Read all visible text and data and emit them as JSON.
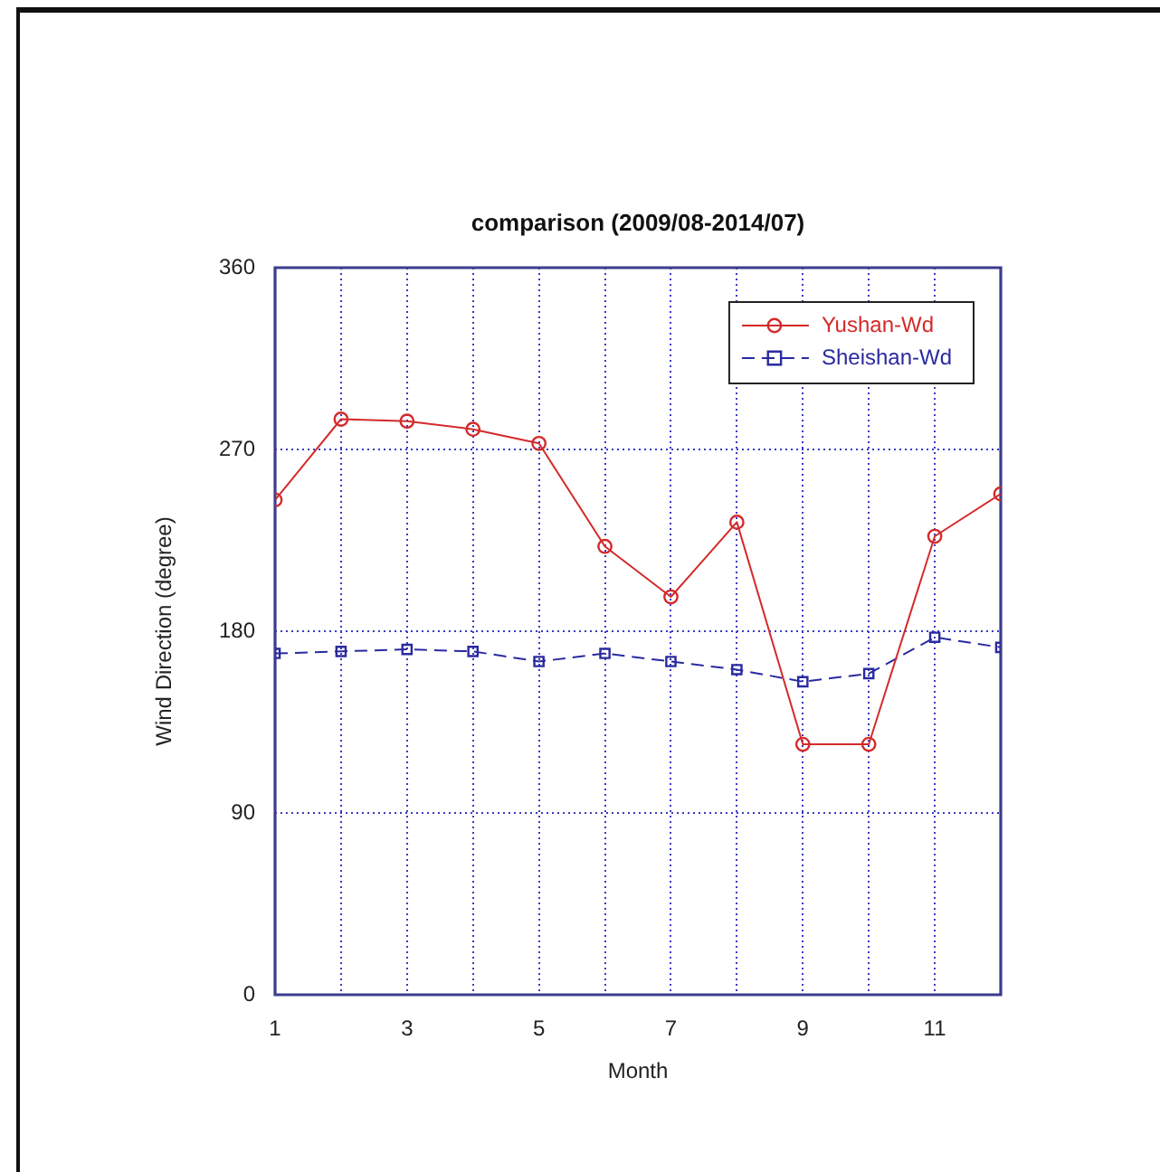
{
  "chart_data": {
    "type": "line",
    "title": "comparison (2009/08-2014/07)",
    "xlabel": "Month",
    "ylabel": "Wind Direction (degree)",
    "x": [
      1,
      2,
      3,
      4,
      5,
      6,
      7,
      8,
      9,
      10,
      11,
      12
    ],
    "series": [
      {
        "name": "Yushan-Wd",
        "color": "#d42a2a",
        "marker": "circle",
        "line_style": "solid",
        "values": [
          245,
          285,
          284,
          280,
          273,
          222,
          197,
          234,
          124,
          124,
          227,
          248
        ]
      },
      {
        "name": "Sheishan-Wd",
        "color": "#2a2aa0",
        "marker": "square",
        "line_style": "dashed",
        "values": [
          169,
          170,
          171,
          170,
          165,
          169,
          165,
          161,
          155,
          159,
          177,
          172
        ]
      }
    ],
    "xlim": [
      1,
      12
    ],
    "xticks": [
      1,
      {
        "value": 2,
        "label": null
      },
      3,
      {
        "value": 4,
        "label": null
      },
      5,
      {
        "value": 6,
        "label": null
      },
      7,
      {
        "value": 8,
        "label": null
      },
      9,
      {
        "value": 10,
        "label": null
      },
      11,
      {
        "value": 12,
        "label": null
      }
    ],
    "ylim": [
      0,
      360
    ],
    "yticks": [
      0,
      90,
      180,
      270,
      360
    ],
    "grid": true,
    "legend": "top right"
  }
}
